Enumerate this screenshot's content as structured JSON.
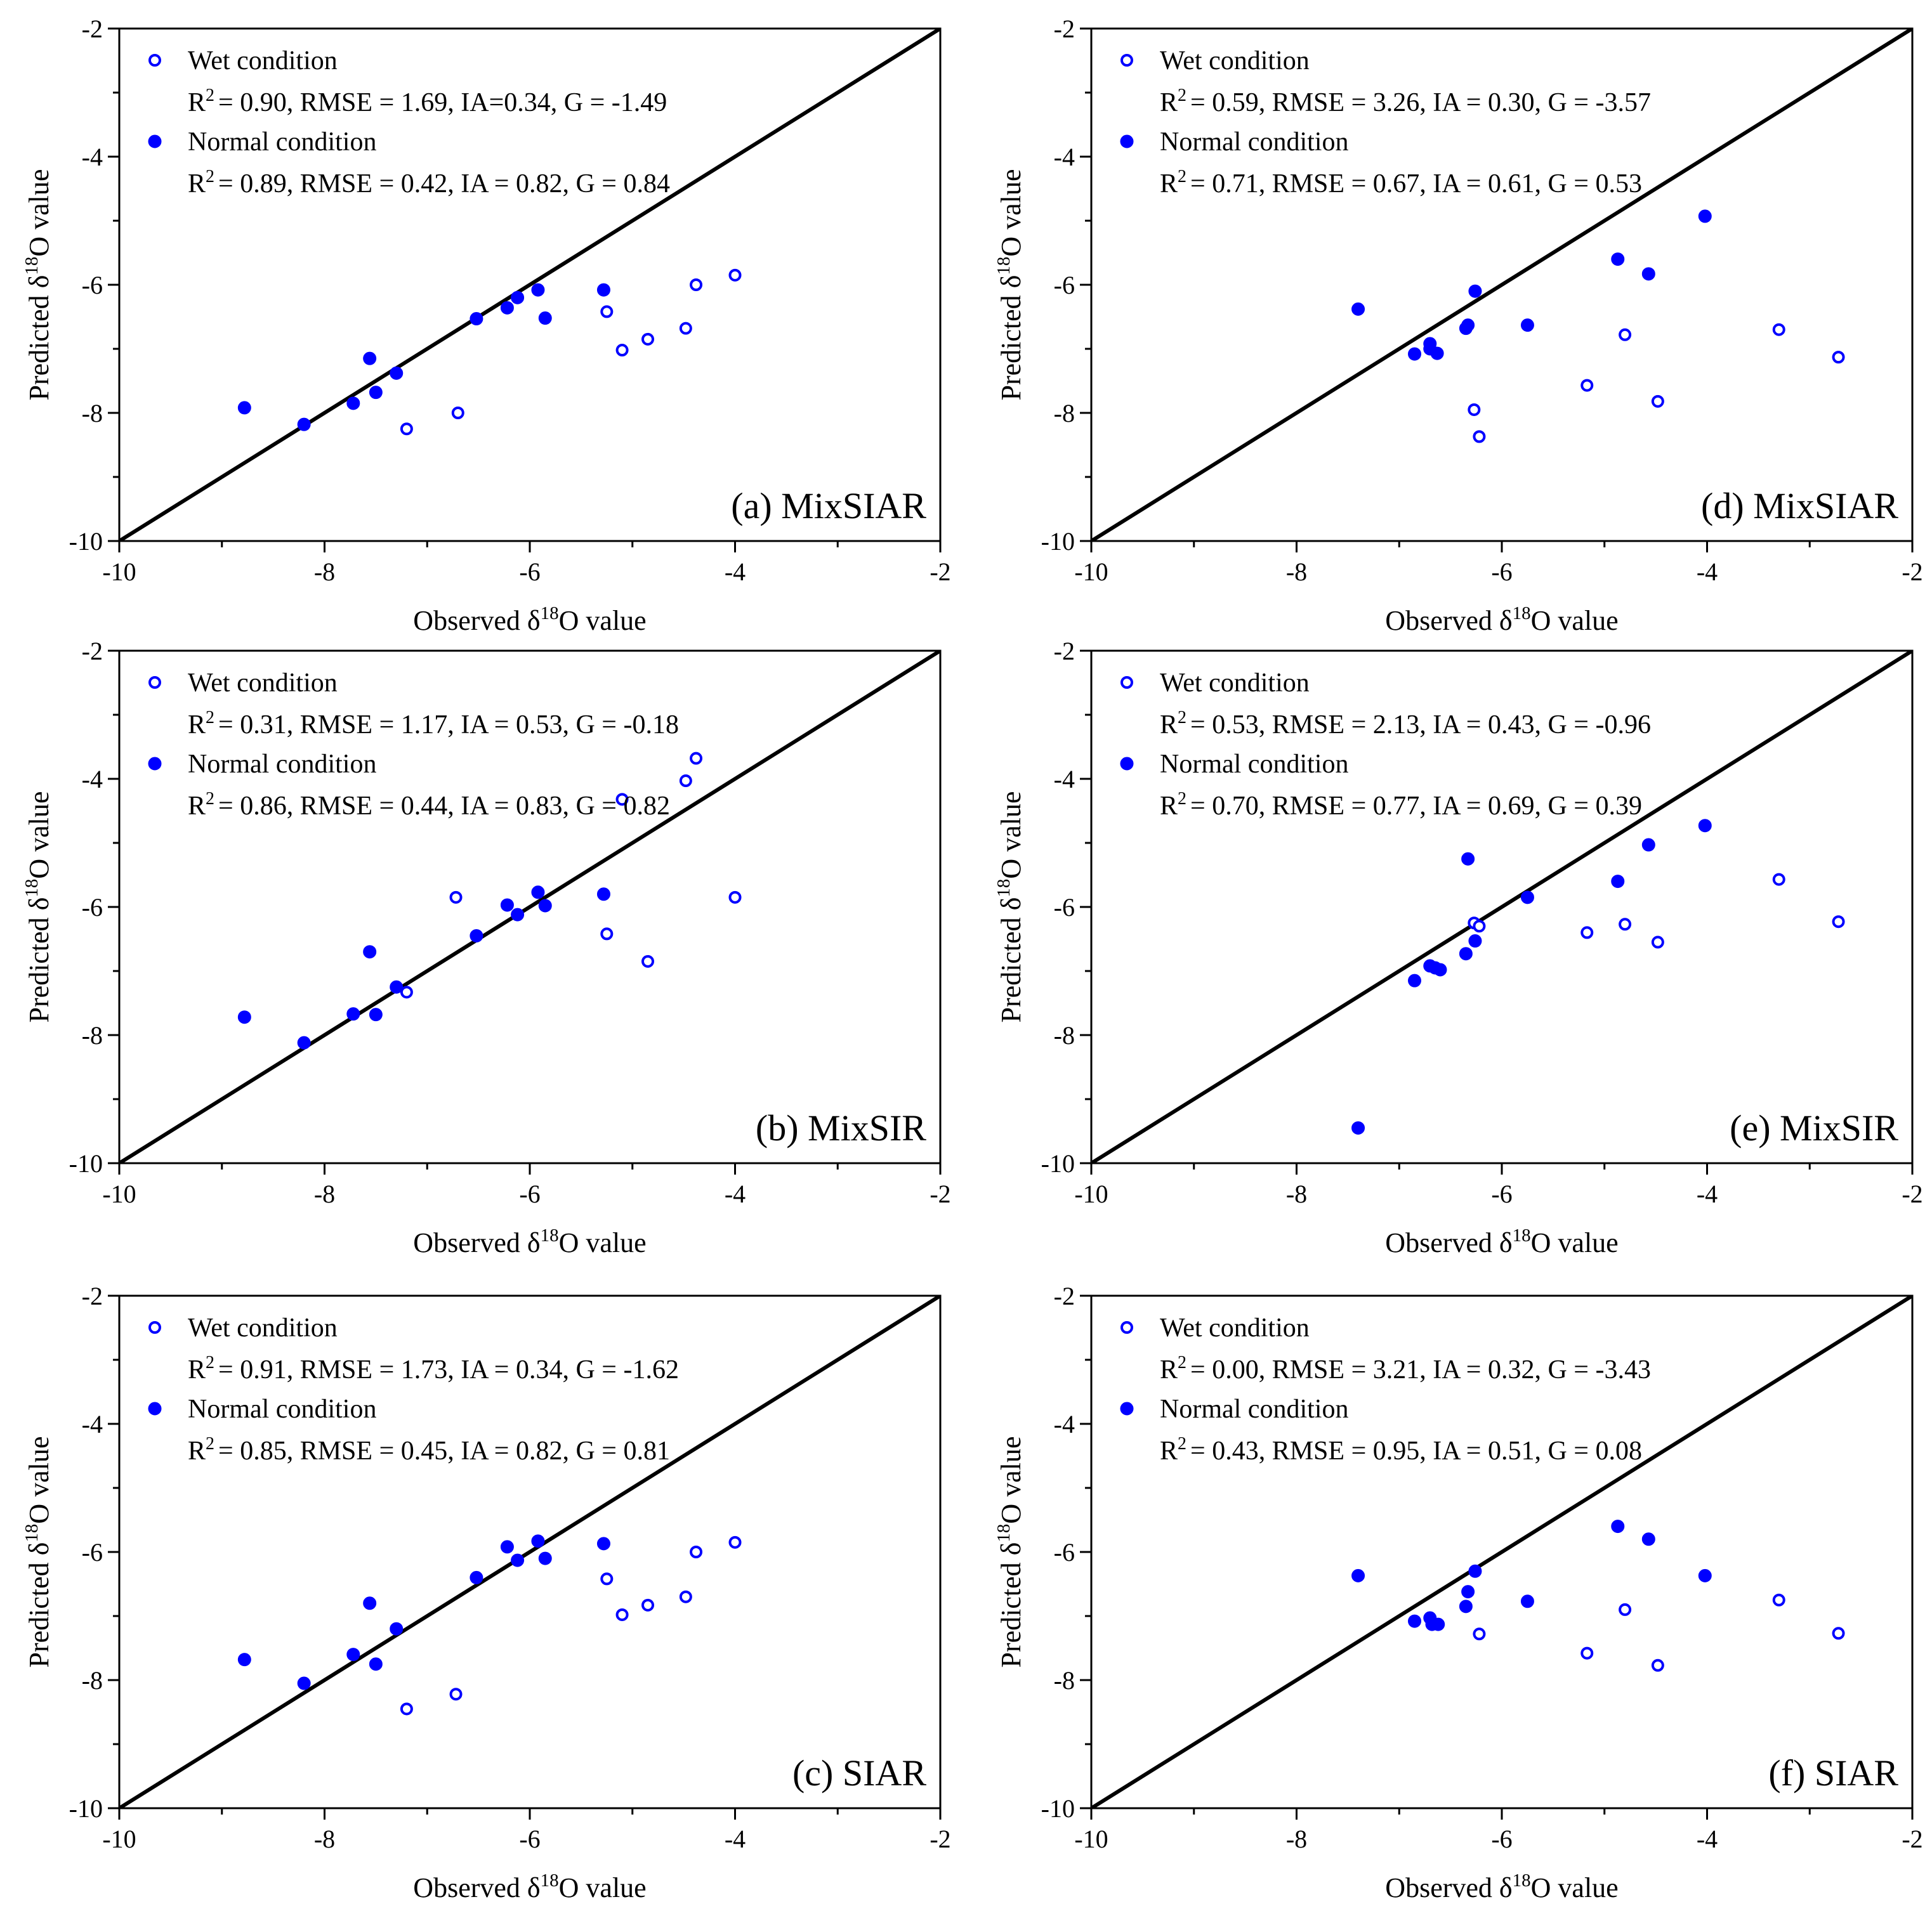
{
  "figure": {
    "marker_color": "#0000ff"
  },
  "chart_data": [
    {
      "type": "scatter",
      "panel_label": "(a) MixSIAR",
      "xlabel": "Observed δ18O value",
      "ylabel": "Predicted δ18O value",
      "xlim": [
        -10,
        -2
      ],
      "ylim": [
        -10,
        -2
      ],
      "xticks": [
        "-10",
        "-8",
        "-6",
        "-4",
        "-2"
      ],
      "yticks": [
        "-10",
        "-8",
        "-6",
        "-4",
        "-2"
      ],
      "reference_line": "1:1",
      "legend": {
        "wet_label": "Wet condition",
        "wet_stats": "= 0.90, RMSE = 1.69, IA=0.34, G = -1.49",
        "normal_label": "Normal condition",
        "normal_stats": "= 0.89, RMSE = 0.42, IA = 0.82, G = 0.84"
      },
      "series": [
        {
          "name": "Wet condition",
          "marker": "open",
          "points": [
            [
              -7.2,
              -8.25
            ],
            [
              -6.7,
              -8.0
            ],
            [
              -5.25,
              -6.42
            ],
            [
              -5.1,
              -7.02
            ],
            [
              -4.85,
              -6.85
            ],
            [
              -4.48,
              -6.68
            ],
            [
              -4.38,
              -6.0
            ],
            [
              -4.0,
              -5.85
            ]
          ]
        },
        {
          "name": "Normal condition",
          "marker": "filled",
          "points": [
            [
              -8.78,
              -7.92
            ],
            [
              -8.2,
              -8.18
            ],
            [
              -7.72,
              -7.85
            ],
            [
              -7.56,
              -7.15
            ],
            [
              -7.5,
              -7.68
            ],
            [
              -7.3,
              -7.38
            ],
            [
              -6.52,
              -6.53
            ],
            [
              -6.22,
              -6.36
            ],
            [
              -6.12,
              -6.2
            ],
            [
              -5.92,
              -6.08
            ],
            [
              -5.85,
              -6.52
            ],
            [
              -5.28,
              -6.08
            ]
          ]
        }
      ]
    },
    {
      "type": "scatter",
      "panel_label": "(d) MixSIAR",
      "xlabel": "Observed δ18O value",
      "ylabel": "Predicted δ18O value",
      "xlim": [
        -10,
        -2
      ],
      "ylim": [
        -10,
        -2
      ],
      "xticks": [
        "-10",
        "-8",
        "-6",
        "-4",
        "-2"
      ],
      "yticks": [
        "-10",
        "-8",
        "-6",
        "-4",
        "-2"
      ],
      "reference_line": "1:1",
      "legend": {
        "wet_label": "Wet condition",
        "wet_stats": "= 0.59, RMSE = 3.26, IA = 0.30, G = -3.57",
        "normal_label": "Normal condition",
        "normal_stats": "= 0.71, RMSE = 0.67, IA = 0.61, G = 0.53"
      },
      "series": [
        {
          "name": "Wet condition",
          "marker": "open",
          "points": [
            [
              -6.27,
              -7.95
            ],
            [
              -6.22,
              -8.37
            ],
            [
              -5.17,
              -7.57
            ],
            [
              -4.8,
              -6.78
            ],
            [
              -4.48,
              -7.82
            ],
            [
              -3.3,
              -6.7
            ],
            [
              -2.72,
              -7.13
            ]
          ]
        },
        {
          "name": "Normal condition",
          "marker": "filled",
          "points": [
            [
              -7.4,
              -6.38
            ],
            [
              -6.85,
              -7.08
            ],
            [
              -6.7,
              -6.92
            ],
            [
              -6.7,
              -7.0
            ],
            [
              -6.63,
              -7.07
            ],
            [
              -6.35,
              -6.68
            ],
            [
              -6.33,
              -6.63
            ],
            [
              -6.26,
              -6.1
            ],
            [
              -5.75,
              -6.63
            ],
            [
              -4.87,
              -5.6
            ],
            [
              -4.57,
              -5.83
            ],
            [
              -4.02,
              -4.93
            ]
          ]
        }
      ]
    },
    {
      "type": "scatter",
      "panel_label": "(b) MixSIR",
      "xlabel": "Observed δ18O value",
      "ylabel": "Predicted δ18O value",
      "xlim": [
        -10,
        -2
      ],
      "ylim": [
        -10,
        -2
      ],
      "xticks": [
        "-10",
        "-8",
        "-6",
        "-4",
        "-2"
      ],
      "yticks": [
        "-10",
        "-8",
        "-6",
        "-4",
        "-2"
      ],
      "reference_line": "1:1",
      "legend": {
        "wet_label": "Wet condition",
        "wet_stats": "= 0.31, RMSE = 1.17, IA = 0.53, G = -0.18",
        "normal_label": "Normal condition",
        "normal_stats": "= 0.86, RMSE = 0.44, IA = 0.83, G = 0.82"
      },
      "series": [
        {
          "name": "Wet condition",
          "marker": "open",
          "points": [
            [
              -7.2,
              -7.33
            ],
            [
              -6.72,
              -5.85
            ],
            [
              -5.25,
              -6.42
            ],
            [
              -5.1,
              -4.32
            ],
            [
              -4.85,
              -6.85
            ],
            [
              -4.48,
              -4.03
            ],
            [
              -4.38,
              -3.68
            ],
            [
              -4.0,
              -5.85
            ]
          ]
        },
        {
          "name": "Normal condition",
          "marker": "filled",
          "points": [
            [
              -8.78,
              -7.72
            ],
            [
              -8.2,
              -8.12
            ],
            [
              -7.72,
              -7.67
            ],
            [
              -7.56,
              -6.7
            ],
            [
              -7.5,
              -7.68
            ],
            [
              -7.3,
              -7.25
            ],
            [
              -6.52,
              -6.45
            ],
            [
              -6.22,
              -5.97
            ],
            [
              -6.12,
              -6.12
            ],
            [
              -5.92,
              -5.77
            ],
            [
              -5.85,
              -5.98
            ],
            [
              -5.28,
              -5.8
            ]
          ]
        }
      ]
    },
    {
      "type": "scatter",
      "panel_label": "(e) MixSIR",
      "xlabel": "Observed δ18O value",
      "ylabel": "Predicted δ18O value",
      "xlim": [
        -10,
        -2
      ],
      "ylim": [
        -10,
        -2
      ],
      "xticks": [
        "-10",
        "-8",
        "-6",
        "-4",
        "-2"
      ],
      "yticks": [
        "-10",
        "-8",
        "-6",
        "-4",
        "-2"
      ],
      "reference_line": "1:1",
      "legend": {
        "wet_label": "Wet condition",
        "wet_stats": "= 0.53, RMSE = 2.13, IA = 0.43, G = -0.96",
        "normal_label": "Normal condition",
        "normal_stats": "= 0.70, RMSE = 0.77, IA = 0.69, G = 0.39"
      },
      "series": [
        {
          "name": "Wet condition",
          "marker": "open",
          "points": [
            [
              -6.27,
              -6.25
            ],
            [
              -6.22,
              -6.3
            ],
            [
              -5.17,
              -6.4
            ],
            [
              -4.8,
              -6.27
            ],
            [
              -4.48,
              -6.55
            ],
            [
              -3.3,
              -5.57
            ],
            [
              -2.72,
              -6.23
            ]
          ]
        },
        {
          "name": "Normal condition",
          "marker": "filled",
          "points": [
            [
              -7.4,
              -9.45
            ],
            [
              -6.85,
              -7.15
            ],
            [
              -6.7,
              -6.92
            ],
            [
              -6.65,
              -6.95
            ],
            [
              -6.6,
              -6.98
            ],
            [
              -6.35,
              -6.73
            ],
            [
              -6.33,
              -5.25
            ],
            [
              -6.26,
              -6.53
            ],
            [
              -5.75,
              -5.85
            ],
            [
              -4.87,
              -5.6
            ],
            [
              -4.57,
              -5.03
            ],
            [
              -4.02,
              -4.73
            ]
          ]
        }
      ]
    },
    {
      "type": "scatter",
      "panel_label": "(c) SIAR",
      "xlabel": "Observed δ18O value",
      "ylabel": "Predicted δ18O value",
      "xlim": [
        -10,
        -2
      ],
      "ylim": [
        -10,
        -2
      ],
      "xticks": [
        "-10",
        "-8",
        "-6",
        "-4",
        "-2"
      ],
      "yticks": [
        "-10",
        "-8",
        "-6",
        "-4",
        "-2"
      ],
      "reference_line": "1:1",
      "legend": {
        "wet_label": "Wet condition",
        "wet_stats": "= 0.91, RMSE = 1.73, IA = 0.34, G = -1.62",
        "normal_label": "Normal condition",
        "normal_stats": "= 0.85, RMSE = 0.45, IA = 0.82, G = 0.81"
      },
      "series": [
        {
          "name": "Wet condition",
          "marker": "open",
          "points": [
            [
              -7.2,
              -8.45
            ],
            [
              -6.72,
              -8.22
            ],
            [
              -5.25,
              -6.42
            ],
            [
              -5.1,
              -6.98
            ],
            [
              -4.85,
              -6.83
            ],
            [
              -4.48,
              -6.7
            ],
            [
              -4.38,
              -6.0
            ],
            [
              -4.0,
              -5.85
            ]
          ]
        },
        {
          "name": "Normal condition",
          "marker": "filled",
          "points": [
            [
              -8.78,
              -7.68
            ],
            [
              -8.2,
              -8.05
            ],
            [
              -7.72,
              -7.6
            ],
            [
              -7.56,
              -6.8
            ],
            [
              -7.5,
              -7.75
            ],
            [
              -7.3,
              -7.2
            ],
            [
              -6.52,
              -6.4
            ],
            [
              -6.22,
              -5.92
            ],
            [
              -6.12,
              -6.13
            ],
            [
              -5.92,
              -5.83
            ],
            [
              -5.85,
              -6.1
            ],
            [
              -5.28,
              -5.87
            ]
          ]
        }
      ]
    },
    {
      "type": "scatter",
      "panel_label": "(f) SIAR",
      "xlabel": "Observed δ18O value",
      "ylabel": "Predicted δ18O value",
      "xlim": [
        -10,
        -2
      ],
      "ylim": [
        -10,
        -2
      ],
      "xticks": [
        "-10",
        "-8",
        "-6",
        "-4",
        "-2"
      ],
      "yticks": [
        "-10",
        "-8",
        "-6",
        "-4",
        "-2"
      ],
      "reference_line": "1:1",
      "legend": {
        "wet_label": "Wet condition",
        "wet_stats": "= 0.00, RMSE = 3.21, IA = 0.32, G = -3.43",
        "normal_label": "Normal condition",
        "normal_stats": "= 0.43, RMSE = 0.95, IA = 0.51, G = 0.08"
      },
      "series": [
        {
          "name": "Wet condition",
          "marker": "open",
          "points": [
            [
              -6.22,
              -7.28
            ],
            [
              -5.17,
              -7.58
            ],
            [
              -4.8,
              -6.9
            ],
            [
              -4.48,
              -7.77
            ],
            [
              -3.3,
              -6.75
            ],
            [
              -2.72,
              -7.27
            ]
          ]
        },
        {
          "name": "Normal condition",
          "marker": "filled",
          "points": [
            [
              -7.4,
              -6.37
            ],
            [
              -6.85,
              -7.08
            ],
            [
              -6.7,
              -7.03
            ],
            [
              -6.68,
              -7.13
            ],
            [
              -6.62,
              -7.13
            ],
            [
              -6.35,
              -6.85
            ],
            [
              -6.33,
              -6.62
            ],
            [
              -6.26,
              -6.3
            ],
            [
              -5.75,
              -6.77
            ],
            [
              -4.87,
              -5.6
            ],
            [
              -4.57,
              -5.8
            ],
            [
              -4.02,
              -6.37
            ]
          ]
        }
      ]
    }
  ]
}
